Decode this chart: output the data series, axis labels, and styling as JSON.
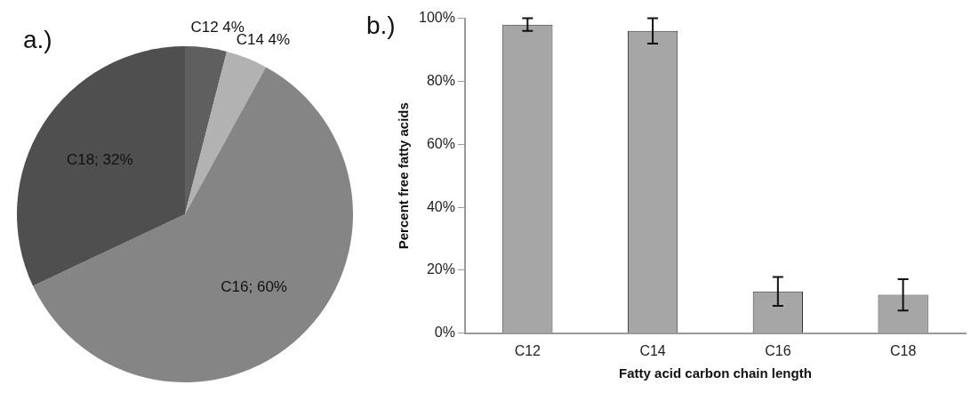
{
  "chart_data": [
    {
      "type": "pie",
      "title": "a.)",
      "categories": [
        "C12",
        "C14",
        "C16",
        "C18"
      ],
      "values": [
        4,
        4,
        60,
        32
      ],
      "colors": [
        "#5f5f5f",
        "#b2b2b2",
        "#858585",
        "#4f4f4f"
      ],
      "value_labels": [
        "4%",
        "4%",
        "60%",
        "32%"
      ],
      "legend": false
    },
    {
      "type": "bar",
      "title": "b.)",
      "categories": [
        "C12",
        "C14",
        "C16",
        "C18"
      ],
      "values": [
        98,
        96,
        13.3,
        12.2
      ],
      "errors": [
        2,
        4,
        4.6,
        5
      ],
      "color": "#a6a6a6",
      "xlabel": "Fatty acid carbon chain length",
      "ylabel": "Percent free fatty acids",
      "ylim": [
        0,
        100
      ],
      "yticks": [
        {
          "value": 0,
          "label": "0%"
        },
        {
          "value": 20,
          "label": "20%"
        },
        {
          "value": 40,
          "label": "40%"
        },
        {
          "value": 60,
          "label": "60%"
        },
        {
          "value": 80,
          "label": "80%"
        },
        {
          "value": 100,
          "label": "100%"
        }
      ],
      "grid": false,
      "legend": false
    }
  ]
}
